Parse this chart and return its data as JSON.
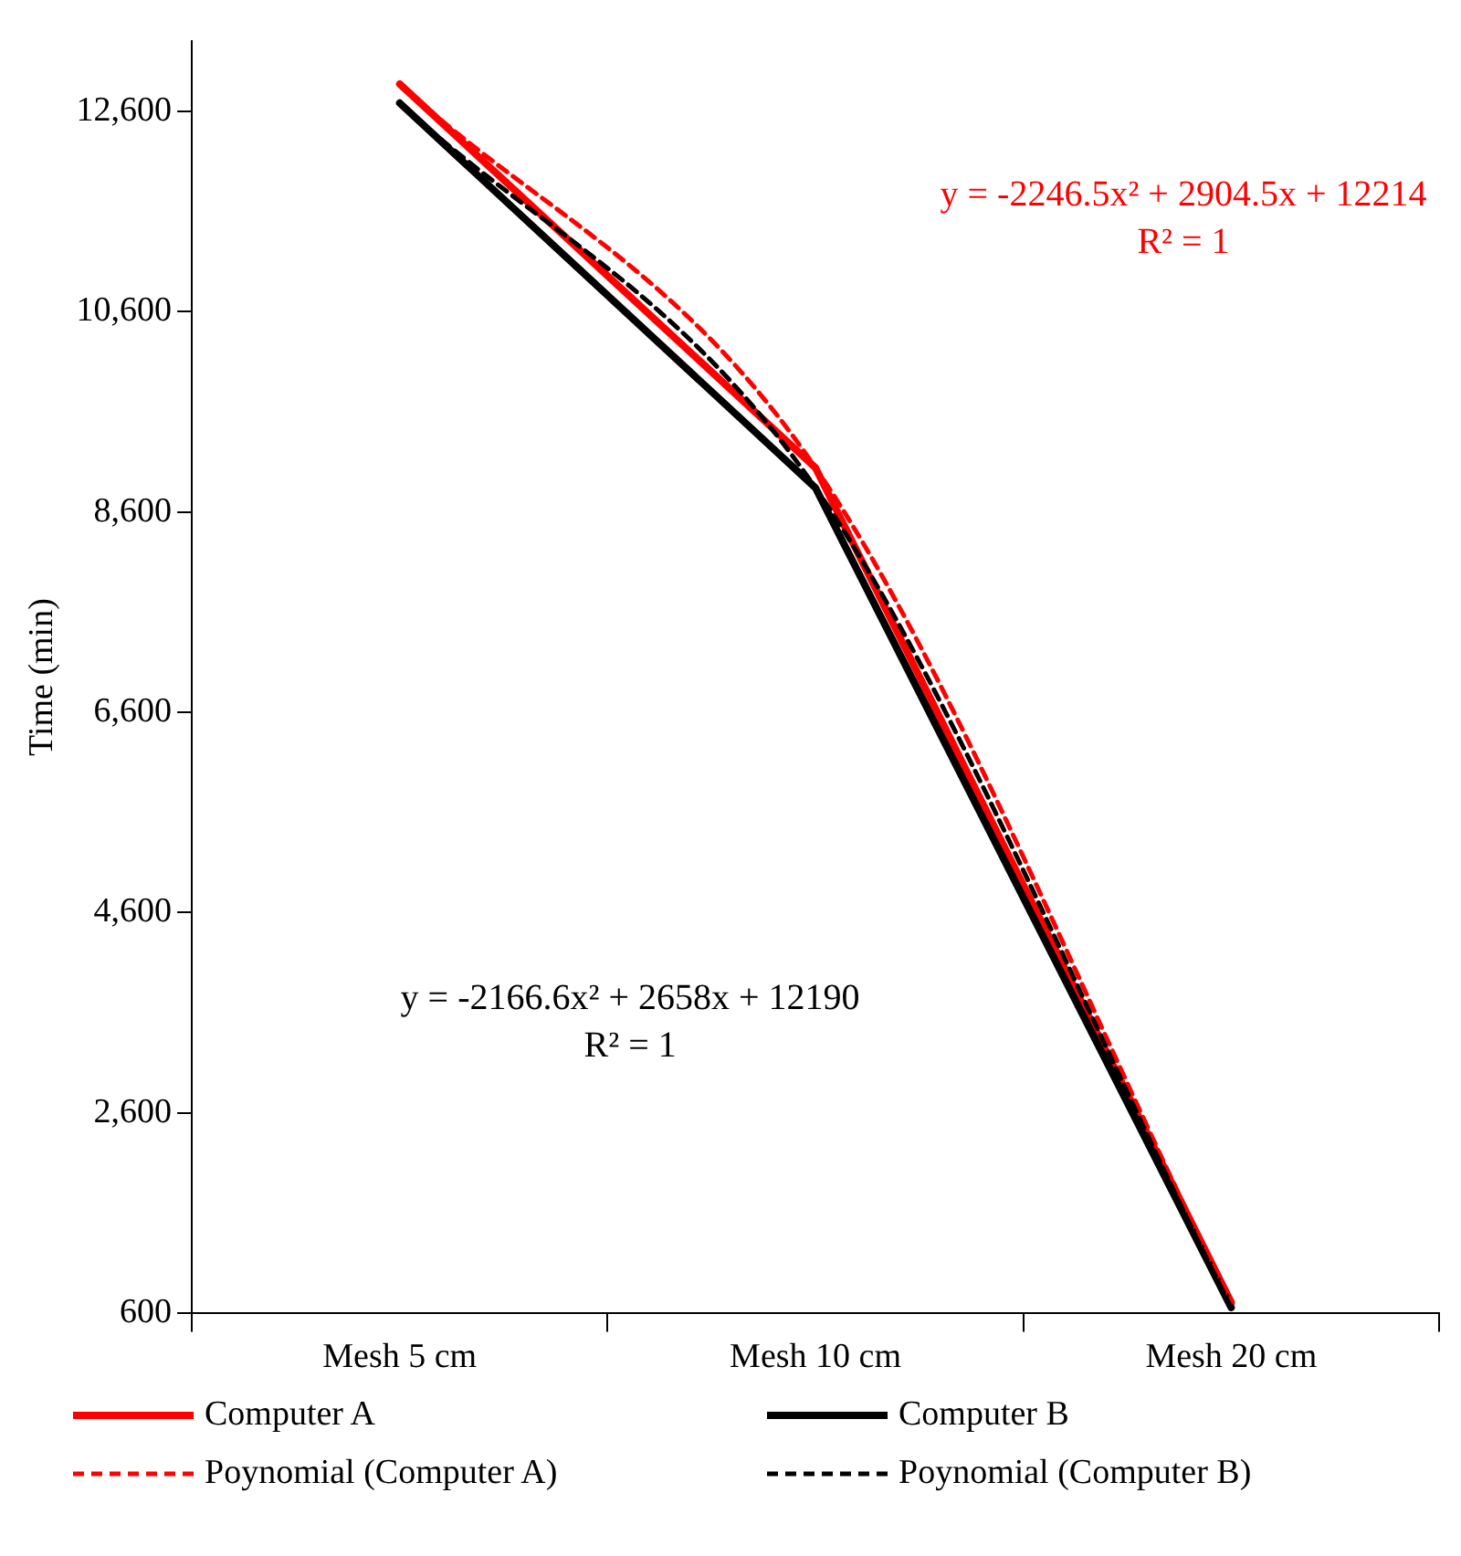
{
  "chart_data": {
    "type": "line",
    "ylabel": "Time (min)",
    "categories": [
      "Mesh 5 cm",
      "Mesh 10 cm",
      "Mesh 20 cm"
    ],
    "series": [
      {
        "name": "Computer A",
        "color": "#ff0000",
        "values": [
          12870,
          9040,
          710
        ]
      },
      {
        "name": "Computer B",
        "color": "#000000",
        "values": [
          12680,
          8840,
          660
        ]
      },
      {
        "name": "Poynomial (Computer A)",
        "color": "#ff0000",
        "line_style": "dashed",
        "values": [
          12870,
          9040,
          710
        ]
      },
      {
        "name": "Poynomial (Computer B)",
        "color": "#000000",
        "line_style": "dashed",
        "values": [
          12680,
          8840,
          660
        ]
      }
    ],
    "ylim": [
      600,
      13300
    ],
    "yticks": [
      {
        "value": 600,
        "label": "600"
      },
      {
        "value": 2600,
        "label": "2,600"
      },
      {
        "value": 4600,
        "label": "4,600"
      },
      {
        "value": 6600,
        "label": "6,600"
      },
      {
        "value": 8600,
        "label": "8,600"
      },
      {
        "value": 10600,
        "label": "10,600"
      },
      {
        "value": 12600,
        "label": "12,600"
      }
    ],
    "grid": false,
    "legend": "bottom",
    "marker": "none",
    "line_style": "solid",
    "annotations": [
      "y = -2246.5x² + 2904.5x + 12214\nR² = 1",
      "y = -2166.6x² + 2658x + 12190\nR² = 1"
    ]
  }
}
